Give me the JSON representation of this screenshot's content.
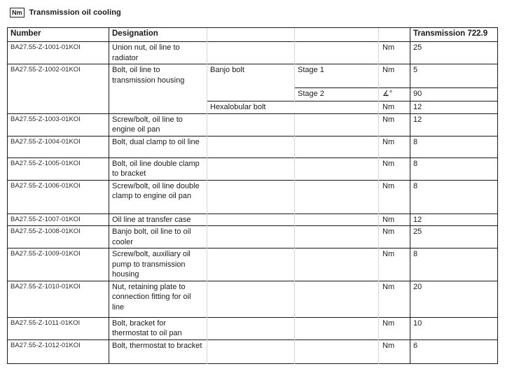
{
  "header": {
    "icon_label": "Nm",
    "title": "Transmission oil cooling"
  },
  "table": {
    "headers": {
      "number": "Number",
      "designation": "Designation",
      "transmission": "Transmission 722.9"
    },
    "rows": [
      {
        "number": "BA27.55-Z-1001-01KOI",
        "designation": "Union nut, oil line to radiator",
        "unit": "Nm",
        "value": "25"
      },
      {
        "number": "BA27.55-Z-1002-01KOI",
        "designation": "Bolt, oil line to transmission housing",
        "subrows": [
          {
            "sub": "Banjo bolt",
            "stage": "Stage 1",
            "unit": "Nm",
            "value": "5"
          },
          {
            "stage": "Stage 2",
            "unit": "∡°",
            "value": "90"
          },
          {
            "sub": "Hexalobular bolt",
            "unit": "Nm",
            "value": "12"
          }
        ]
      },
      {
        "number": "BA27.55-Z-1003-01KOI",
        "designation": "Screw/bolt, oil line to engine oil pan",
        "unit": "Nm",
        "value": "12"
      },
      {
        "number": "BA27.55-Z-1004-01KOI",
        "designation": "Bolt, dual clamp to oil line",
        "unit": "Nm",
        "value": "8"
      },
      {
        "number": "BA27.55-Z-1005-01KOI",
        "designation": "Bolt, oil line double clamp to bracket",
        "unit": "Nm",
        "value": "8"
      },
      {
        "number": "BA27.55-Z-1006-01KOI",
        "designation": "Screw/bolt, oil line double clamp to engine oil pan",
        "unit": "Nm",
        "value": "8"
      },
      {
        "number": "BA27.55-Z-1007-01KOI",
        "designation": "Oil line at transfer case",
        "unit": "Nm",
        "value": "12"
      },
      {
        "number": "BA27.55-Z-1008-01KOI",
        "designation": "Banjo bolt, oil line to oil cooler",
        "unit": "Nm",
        "value": "25"
      },
      {
        "number": "BA27.55-Z-1009-01KOI",
        "designation": "Screw/bolt, auxiliary oil pump to transmission housing",
        "unit": "Nm",
        "value": "8"
      },
      {
        "number": "BA27.55-Z-1010-01KOI",
        "designation": "Nut, retaining plate to connection fitting for oil line",
        "unit": "Nm",
        "value": "20"
      },
      {
        "number": "BA27.55-Z-1011-01KOI",
        "designation": "Bolt, bracket for thermostat to oil pan",
        "unit": "Nm",
        "value": "10"
      },
      {
        "number": "BA27.55-Z-1012-01KOI",
        "designation": "Bolt, thermostat to bracket",
        "unit": "Nm",
        "value": "6"
      }
    ]
  }
}
